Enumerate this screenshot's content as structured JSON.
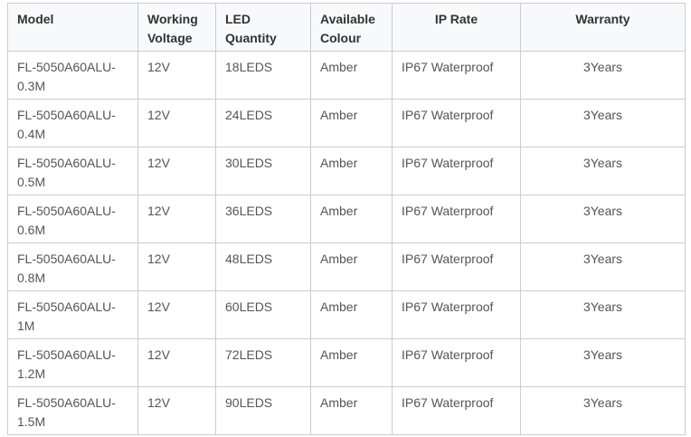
{
  "colors": {
    "border": "#cccccc",
    "header_background": "#f8f9fa",
    "header_text": "#333333",
    "cell_text": "#555555",
    "page_background": "#ffffff"
  },
  "table": {
    "columns": [
      {
        "id": "model",
        "label": "Model"
      },
      {
        "id": "working-voltage",
        "label": "Working Voltage"
      },
      {
        "id": "led-quantity",
        "label": "LED Quantity"
      },
      {
        "id": "available-colour",
        "label": "Available Colour"
      },
      {
        "id": "ip-rate",
        "label": "IP Rate"
      },
      {
        "id": "warranty",
        "label": "Warranty"
      }
    ],
    "rows": [
      [
        "FL-5050A60ALU-0.3M",
        "12V",
        "18LEDS",
        "Amber",
        "IP67 Waterproof",
        "3Years"
      ],
      [
        "FL-5050A60ALU-0.4M",
        "12V",
        "24LEDS",
        "Amber",
        "IP67 Waterproof",
        "3Years"
      ],
      [
        "FL-5050A60ALU-0.5M",
        "12V",
        "30LEDS",
        "Amber",
        "IP67 Waterproof",
        "3Years"
      ],
      [
        "FL-5050A60ALU-0.6M",
        "12V",
        "36LEDS",
        "Amber",
        "IP67 Waterproof",
        "3Years"
      ],
      [
        "FL-5050A60ALU-0.8M",
        "12V",
        "48LEDS",
        "Amber",
        "IP67 Waterproof",
        "3Years"
      ],
      [
        "FL-5050A60ALU-1M",
        "12V",
        "60LEDS",
        "Amber",
        "IP67 Waterproof",
        "3Years"
      ],
      [
        "FL-5050A60ALU-1.2M",
        "12V",
        "72LEDS",
        "Amber",
        "IP67 Waterproof",
        "3Years"
      ],
      [
        "FL-5050A60ALU-1.5M",
        "12V",
        "90LEDS",
        "Amber",
        "IP67 Waterproof",
        "3Years"
      ]
    ]
  }
}
